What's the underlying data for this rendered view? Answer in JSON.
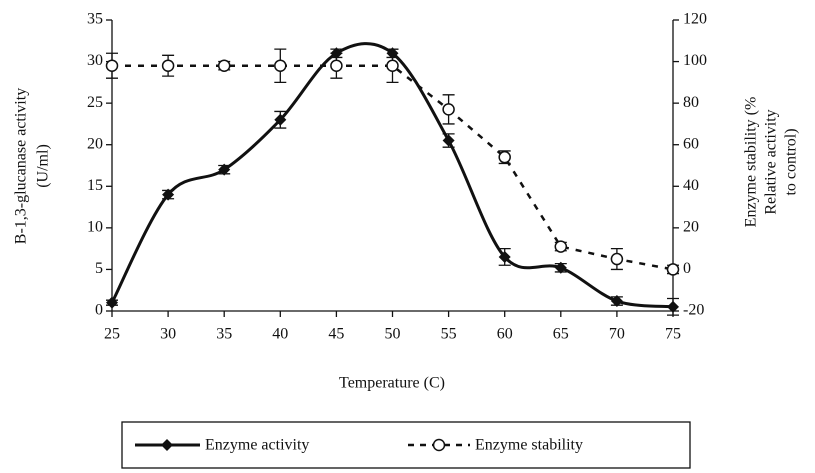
{
  "chart_data": {
    "type": "line",
    "x_label": "Temperature (C)",
    "y_label": [
      "B-1,3-glucanase activity",
      "(U/ml)"
    ],
    "y2_label": [
      "Enzyme stability (%",
      "Relative activity",
      "to control)"
    ],
    "x": [
      25,
      30,
      35,
      40,
      45,
      50,
      55,
      60,
      65,
      70,
      75
    ],
    "xlim": [
      25,
      75
    ],
    "xticks": [
      25,
      30,
      35,
      40,
      45,
      50,
      55,
      60,
      65,
      70,
      75
    ],
    "ylim": [
      0,
      35
    ],
    "yticks": [
      0,
      5,
      10,
      15,
      20,
      25,
      30,
      35
    ],
    "y2lim": [
      -20,
      120
    ],
    "y2ticks": [
      -20,
      0,
      20,
      40,
      60,
      80,
      100,
      120
    ],
    "legend": "bottom",
    "series": [
      {
        "name": "Enzyme activity",
        "color": "#111111",
        "marker": "diamond",
        "linestyle": "solid",
        "values": [
          1,
          14,
          17,
          23,
          31,
          31,
          20.5,
          6.5,
          5.2,
          1.2,
          0.5
        ],
        "errors": [
          0.3,
          0.5,
          0.5,
          1,
          0.5,
          0.5,
          0.8,
          1,
          0.5,
          0.5,
          1
        ]
      },
      {
        "name": "Enzyme stability",
        "color": "#111111",
        "marker": "circle",
        "linestyle": "dashed",
        "axis": "y2",
        "values": [
          98,
          98,
          98,
          98,
          98,
          98,
          77,
          54,
          11,
          5,
          0
        ],
        "errors": [
          6,
          5,
          2,
          8,
          6,
          8,
          7,
          3,
          2,
          5,
          2
        ]
      }
    ]
  }
}
